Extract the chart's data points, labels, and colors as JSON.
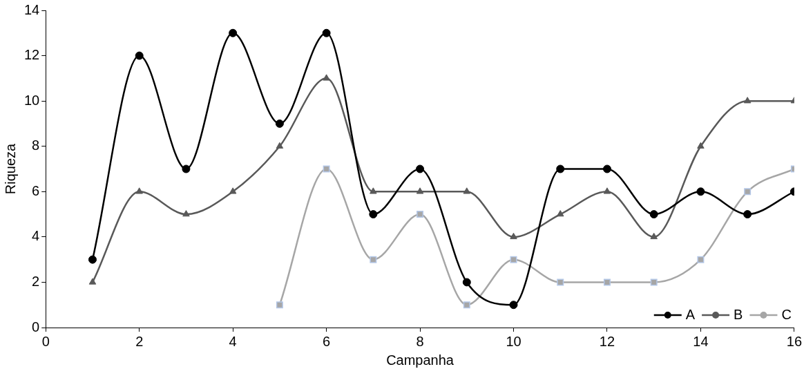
{
  "chart_data": {
    "type": "line",
    "xlabel": "Campanha",
    "ylabel": "Riqueza",
    "xlim": [
      0,
      16
    ],
    "xticks": [
      0,
      2,
      4,
      6,
      8,
      10,
      12,
      14,
      16
    ],
    "ylim": [
      0,
      14
    ],
    "yticks": [
      0,
      2,
      4,
      6,
      8,
      10,
      12,
      14
    ],
    "grid": false,
    "legend": "bottom right",
    "line_style": "solid",
    "series": [
      {
        "name": "A",
        "color": "#000000",
        "marker": "circle",
        "x": [
          1,
          2,
          3,
          4,
          5,
          6,
          7,
          8,
          9,
          10,
          11,
          12,
          13,
          14,
          15,
          16
        ],
        "values": [
          3,
          12,
          7,
          13,
          9,
          13,
          5,
          7,
          2,
          1,
          7,
          7,
          5,
          6,
          5,
          6
        ]
      },
      {
        "name": "B",
        "color": "#595959",
        "marker": "triangle",
        "x": [
          1,
          2,
          3,
          4,
          5,
          6,
          7,
          8,
          9,
          10,
          11,
          12,
          13,
          14,
          15,
          16
        ],
        "values": [
          2,
          6,
          5,
          6,
          8,
          11,
          6,
          6,
          6,
          4,
          5,
          6,
          4,
          8,
          10,
          10
        ]
      },
      {
        "name": "C",
        "color": "#a6a6a6",
        "marker": "square",
        "x": [
          5,
          6,
          7,
          8,
          9,
          10,
          11,
          12,
          13,
          14,
          15,
          16
        ],
        "values": [
          1,
          7,
          3,
          5,
          1,
          3,
          2,
          2,
          2,
          3,
          6,
          7
        ]
      }
    ]
  }
}
